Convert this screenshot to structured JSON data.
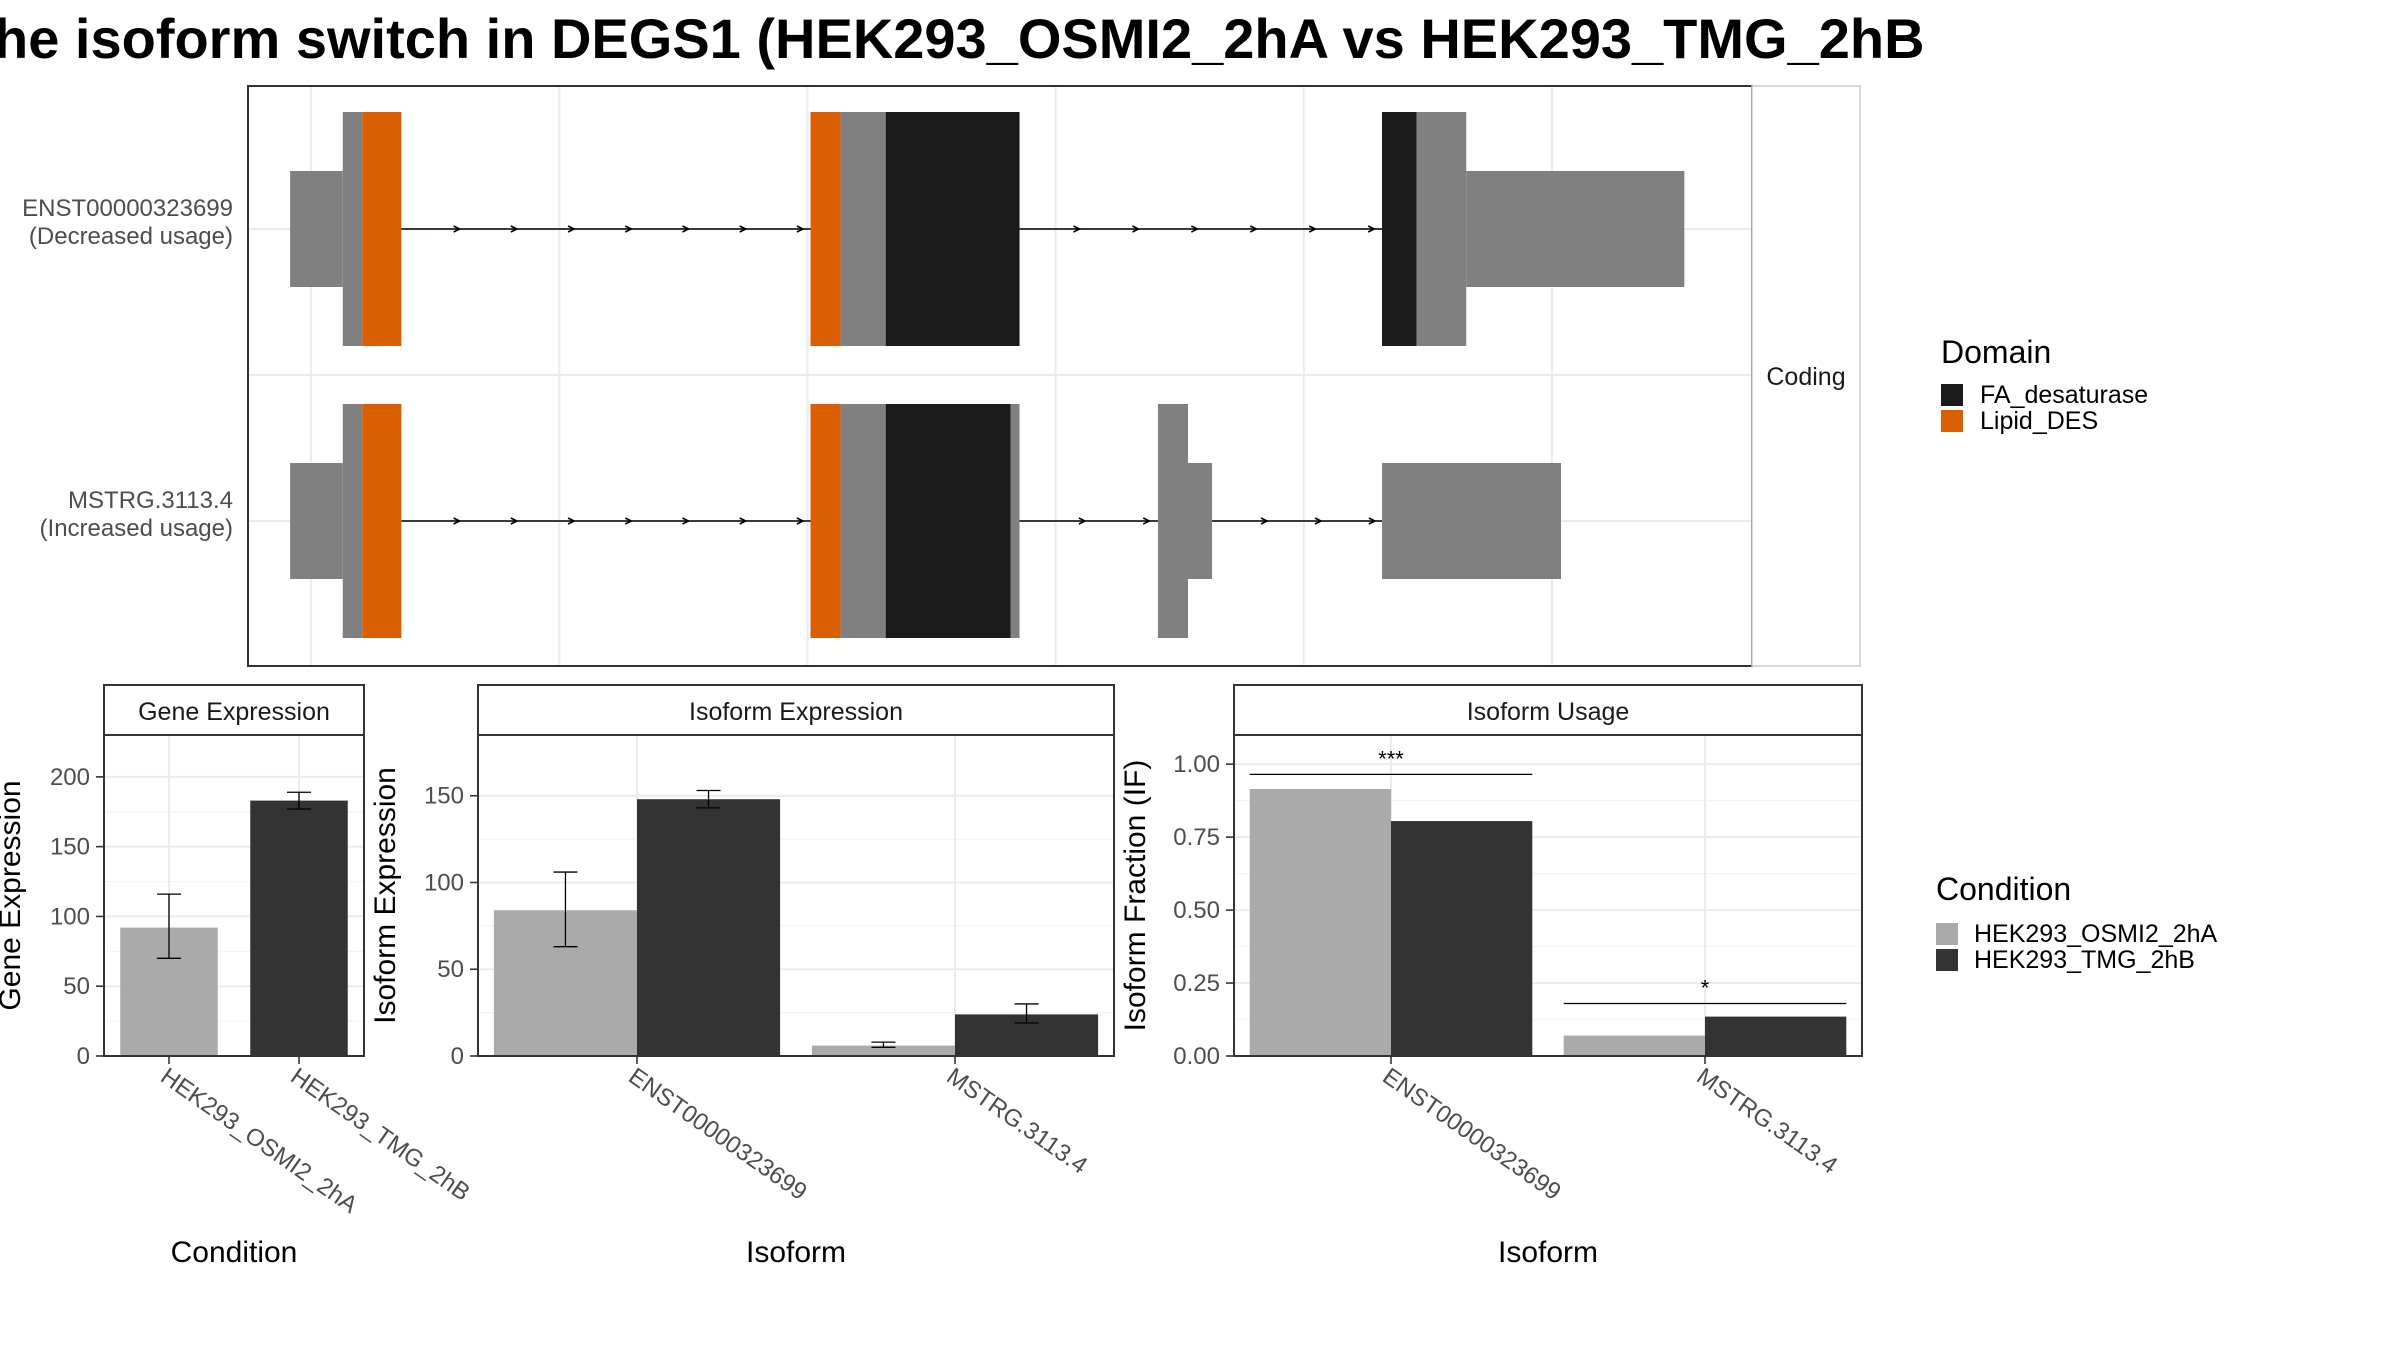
{
  "title": "he isoform switch in DEGS1 (HEK293_OSMI2_2hA vs HEK293_TMG_2hB",
  "colors": {
    "utr": "#808080",
    "FA_desaturase": "#1a1a1a",
    "Lipid_DES": "#d95f02",
    "HEK293_OSMI2_2hA": "#aaaaaa",
    "HEK293_TMG_2hB": "#333333",
    "grid": "#ebebeb",
    "panel_border": "#333333",
    "strip_fill": "#ffffff",
    "intron": "#000000"
  },
  "chart_data": [
    {
      "type": "gene-structure",
      "strip_label": "Coding",
      "legend": {
        "title": "Domain",
        "items": [
          {
            "label": "FA_desaturase",
            "color_key": "FA_desaturase"
          },
          {
            "label": "Lipid_DES",
            "color_key": "Lipid_DES"
          }
        ]
      },
      "transcripts": [
        {
          "id": "ENST00000323699",
          "label_line1": "ENST00000323699",
          "label_line2": "(Decreased usage)",
          "features": [
            {
              "start": 0.028,
              "end": 0.063,
              "kind": "utr"
            },
            {
              "start": 0.063,
              "end": 0.076,
              "kind": "cds"
            },
            {
              "start": 0.076,
              "end": 0.102,
              "kind": "Lipid_DES"
            },
            {
              "start": 0.374,
              "end": 0.394,
              "kind": "Lipid_DES"
            },
            {
              "start": 0.394,
              "end": 0.424,
              "kind": "cds"
            },
            {
              "start": 0.424,
              "end": 0.513,
              "kind": "FA_desaturase"
            },
            {
              "start": 0.754,
              "end": 0.777,
              "kind": "FA_desaturase"
            },
            {
              "start": 0.777,
              "end": 0.81,
              "kind": "cds"
            },
            {
              "start": 0.81,
              "end": 0.955,
              "kind": "utr"
            }
          ],
          "introns": [
            [
              0.102,
              0.374
            ],
            [
              0.513,
              0.754
            ]
          ]
        },
        {
          "id": "MSTRG.3113.4",
          "label_line1": "MSTRG.3113.4",
          "label_line2": "(Increased usage)",
          "features": [
            {
              "start": 0.028,
              "end": 0.063,
              "kind": "utr"
            },
            {
              "start": 0.063,
              "end": 0.076,
              "kind": "cds"
            },
            {
              "start": 0.076,
              "end": 0.102,
              "kind": "Lipid_DES"
            },
            {
              "start": 0.374,
              "end": 0.394,
              "kind": "Lipid_DES"
            },
            {
              "start": 0.394,
              "end": 0.424,
              "kind": "cds"
            },
            {
              "start": 0.424,
              "end": 0.507,
              "kind": "FA_desaturase"
            },
            {
              "start": 0.507,
              "end": 0.513,
              "kind": "cds"
            },
            {
              "start": 0.605,
              "end": 0.625,
              "kind": "cds"
            },
            {
              "start": 0.625,
              "end": 0.641,
              "kind": "utr"
            },
            {
              "start": 0.754,
              "end": 0.873,
              "kind": "utr"
            }
          ],
          "introns": [
            [
              0.102,
              0.374
            ],
            [
              0.513,
              0.605
            ],
            [
              0.641,
              0.754
            ]
          ]
        }
      ]
    },
    {
      "type": "bar",
      "strip_label": "Gene Expression",
      "xlabel": "Condition",
      "ylabel": "Gene Expression",
      "ylim": [
        0,
        230
      ],
      "yticks": [
        0,
        50,
        100,
        150,
        200
      ],
      "categories": [
        "HEK293_OSMI2_2hA",
        "HEK293_TMG_2hB"
      ],
      "series": [
        {
          "name": "HEK293_OSMI2_2hA",
          "color_key": "HEK293_OSMI2_2hA",
          "values": [
            92,
            null
          ],
          "err_low": [
            70,
            null
          ],
          "err_high": [
            116,
            null
          ]
        },
        {
          "name": "HEK293_TMG_2hB",
          "color_key": "HEK293_TMG_2hB",
          "values": [
            null,
            183
          ],
          "err_low": [
            null,
            177
          ],
          "err_high": [
            null,
            189
          ]
        }
      ]
    },
    {
      "type": "bar",
      "strip_label": "Isoform Expression",
      "xlabel": "Isoform",
      "ylabel": "Isoform Expression",
      "ylim": [
        0,
        185
      ],
      "yticks": [
        0,
        50,
        100,
        150
      ],
      "categories": [
        "ENST00000323699",
        "MSTRG.3113.4"
      ],
      "series": [
        {
          "name": "HEK293_OSMI2_2hA",
          "color_key": "HEK293_OSMI2_2hA",
          "values": [
            84,
            6
          ],
          "err_low": [
            63,
            5
          ],
          "err_high": [
            106,
            8
          ]
        },
        {
          "name": "HEK293_TMG_2hB",
          "color_key": "HEK293_TMG_2hB",
          "values": [
            148,
            24
          ],
          "err_low": [
            143,
            19
          ],
          "err_high": [
            153,
            30
          ]
        }
      ]
    },
    {
      "type": "bar",
      "strip_label": "Isoform Usage",
      "xlabel": "Isoform",
      "ylabel": "Isoform Fraction (IF)",
      "ylim": [
        0,
        1.1
      ],
      "yticks": [
        0,
        0.25,
        0.5,
        0.75,
        1.0
      ],
      "ytick_labels": [
        "0.00",
        "0.25",
        "0.50",
        "0.75",
        "1.00"
      ],
      "categories": [
        "ENST00000323699",
        "MSTRG.3113.4"
      ],
      "series": [
        {
          "name": "HEK293_OSMI2_2hA",
          "color_key": "HEK293_OSMI2_2hA",
          "values": [
            0.915,
            0.07
          ]
        },
        {
          "name": "HEK293_TMG_2hB",
          "color_key": "HEK293_TMG_2hB",
          "values": [
            0.805,
            0.135
          ]
        }
      ],
      "significance": [
        {
          "category": "ENST00000323699",
          "label": "***",
          "y": 0.965
        },
        {
          "category": "MSTRG.3113.4",
          "label": "*",
          "y": 0.18
        }
      ],
      "legend": {
        "title": "Condition",
        "items": [
          {
            "label": "HEK293_OSMI2_2hA",
            "color_key": "HEK293_OSMI2_2hA"
          },
          {
            "label": "HEK293_TMG_2hB",
            "color_key": "HEK293_TMG_2hB"
          }
        ]
      }
    }
  ]
}
